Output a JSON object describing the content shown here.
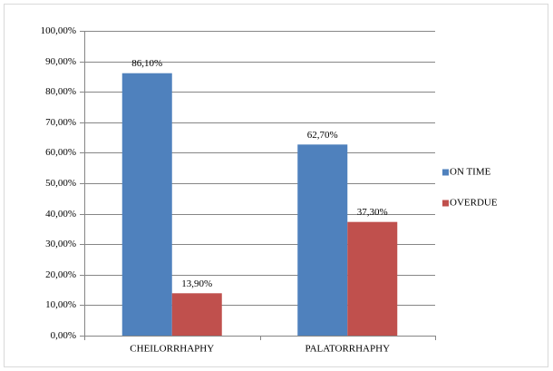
{
  "chart_data": {
    "type": "bar",
    "categories": [
      "CHEILORRHAPHY",
      "PALATORRHAPHY"
    ],
    "series": [
      {
        "name": "ON TIME",
        "color": "#4f81bd",
        "values": [
          86.1,
          62.7
        ],
        "value_labels": [
          "86,10%",
          "62,70%"
        ]
      },
      {
        "name": "OVERDUE",
        "color": "#c0504d",
        "values": [
          13.9,
          37.3
        ],
        "value_labels": [
          "13,90%",
          "37,30%"
        ]
      }
    ],
    "ylim": [
      0,
      100
    ],
    "yticks": [
      {
        "value": 0,
        "label": "0,00%"
      },
      {
        "value": 10,
        "label": "10,00%"
      },
      {
        "value": 20,
        "label": "20,00%"
      },
      {
        "value": 30,
        "label": "30,00%"
      },
      {
        "value": 40,
        "label": "40,00%"
      },
      {
        "value": 50,
        "label": "50,00%"
      },
      {
        "value": 60,
        "label": "60,00%"
      },
      {
        "value": 70,
        "label": "70,00%"
      },
      {
        "value": 80,
        "label": "80,00%"
      },
      {
        "value": 90,
        "label": "90,00%"
      },
      {
        "value": 100,
        "label": "100,00%"
      }
    ],
    "grid": true,
    "legend": "right"
  }
}
